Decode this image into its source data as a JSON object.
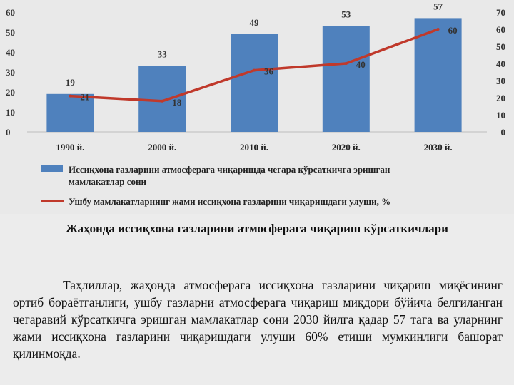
{
  "chart_data": {
    "type": "bar",
    "categories": [
      "1990 й.",
      "2000 й.",
      "2010 й.",
      "2020 й.",
      "2030 й."
    ],
    "series": [
      {
        "name": "Иссиқхона газларини атмосферага чиқаришда чегара кўрсаткичга эришган мамлакатлар сони",
        "type": "bar",
        "axis": "left",
        "values": [
          19,
          33,
          49,
          53,
          57
        ],
        "color": "#4f81bd"
      },
      {
        "name": "Ушбу мамлакатларнинг жами иссиқхона газларини чиқаришдаги улуши, %",
        "type": "line",
        "axis": "right",
        "values": [
          21,
          18,
          36,
          40,
          60
        ],
        "color": "#c0392b"
      }
    ],
    "legend_lines": [
      [
        "Иссиқхона газларини атмосферага чиқаришда чегара кўрсаткичга эришган",
        "мамлакатлар сони"
      ],
      [
        "Ушбу мамлакатларнинг жами иссиқхона газларини чиқаришдаги улуши, %"
      ]
    ],
    "y_left": {
      "ylim": [
        0,
        60
      ],
      "ticks": [
        "0",
        "10",
        "20",
        "30",
        "40",
        "50",
        "60"
      ]
    },
    "y_right": {
      "ylim": [
        0,
        70
      ],
      "ticks": [
        "0",
        "10",
        "20",
        "30",
        "40",
        "50",
        "60",
        "70"
      ]
    },
    "grid": false,
    "legend_position": "bottom"
  },
  "caption": "Жаҳонда иссиқхона газларини атмосферага чиқариш кўрсаткичлари",
  "paragraph": "Таҳлиллар, жаҳонда атмосферага иссиқхона газларини чиқариш миқёсининг ортиб бораётганлиги, ушбу газларни атмосферага чиқариш миқдори бўйича белгиланган чегаравий кўрсаткичга эришган мамлакатлар сони 2030 йилга қадар 57 тага ва уларнинг жами иссиқхона газларини чиқаришдаги улуши 60% етиши мумкинлиги башорат қилинмоқда."
}
